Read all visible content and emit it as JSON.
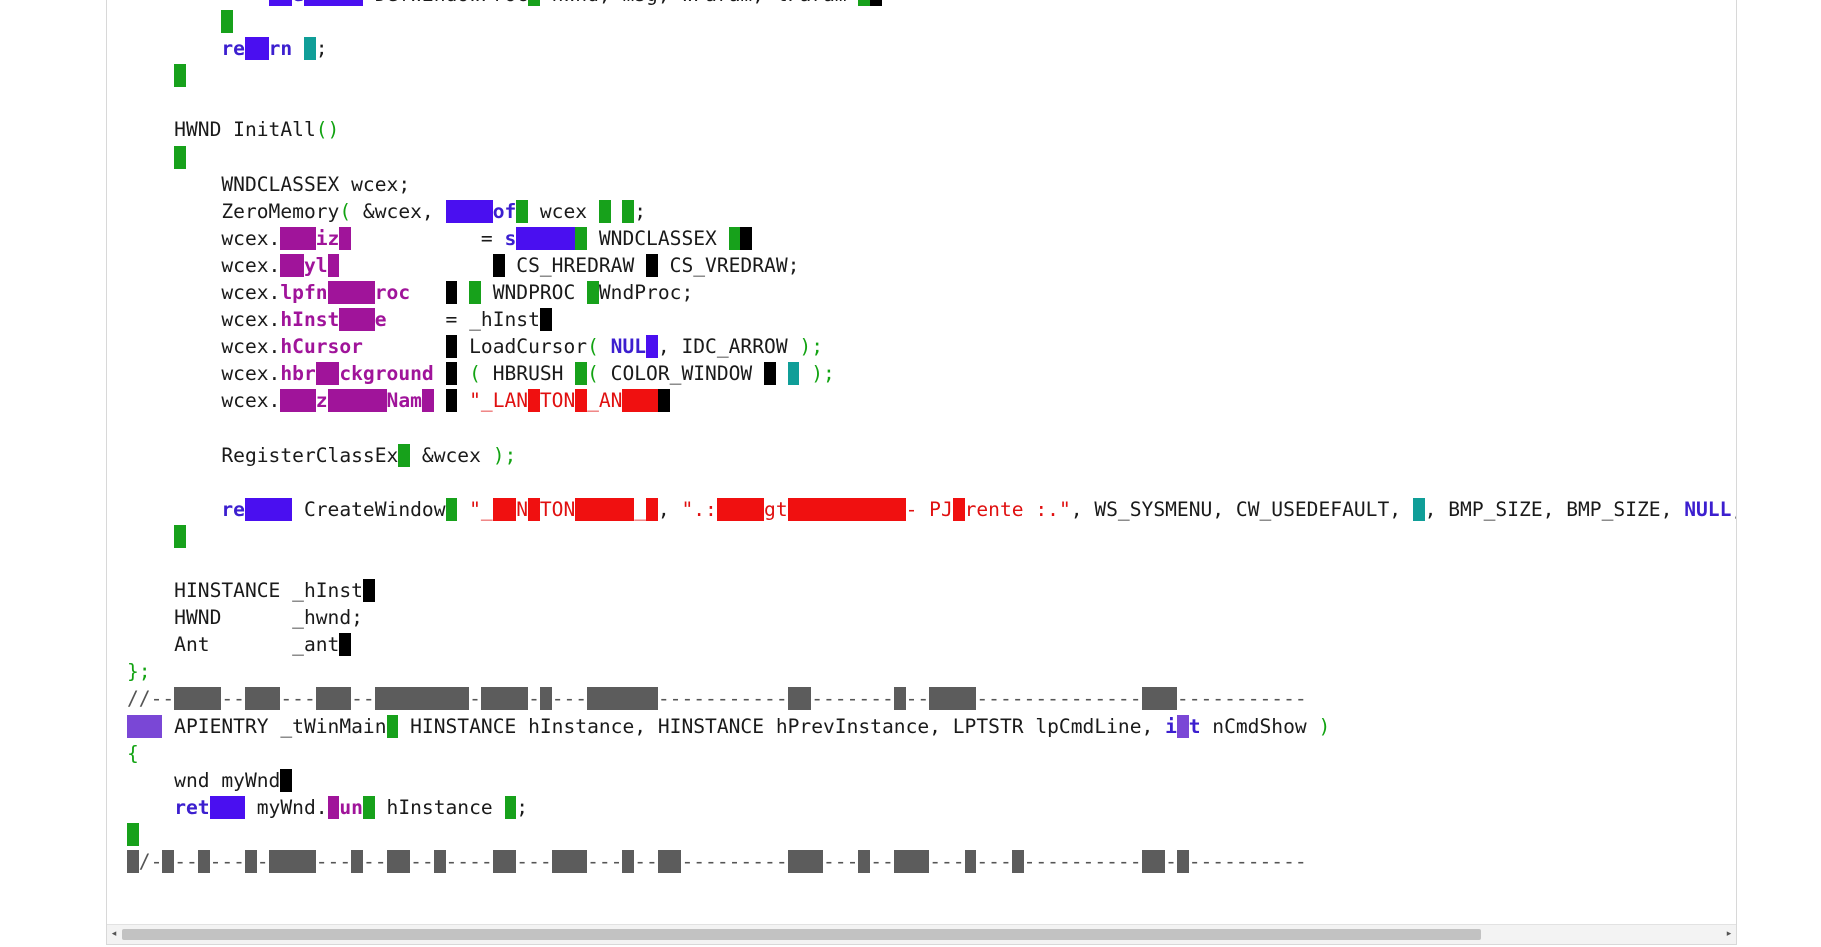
{
  "editor": {
    "lines": [
      [
        {
          "t": "            "
        },
        {
          "t": "  ",
          "c": "bg-blue"
        },
        {
          "t": "e",
          "c": "kw"
        },
        {
          "t": "     ",
          "c": "bg-blue"
        },
        {
          "t": " DefWindowProc"
        },
        {
          "t": " ",
          "c": "bg-green"
        },
        {
          "t": " hWnd, msg, wParam, lParam "
        },
        {
          "t": " ",
          "c": "bg-green"
        },
        {
          "t": " ",
          "c": "bg-black"
        }
      ],
      [
        {
          "t": "        "
        },
        {
          "t": " ",
          "c": "bg-green"
        }
      ],
      [
        {
          "t": "        "
        },
        {
          "t": "re",
          "c": "kw"
        },
        {
          "t": "  ",
          "c": "bg-blue"
        },
        {
          "t": "rn",
          "c": "kw"
        },
        {
          "t": " "
        },
        {
          "t": " ",
          "c": "bg-teal"
        },
        {
          "t": ";"
        }
      ],
      [
        {
          "t": "    "
        },
        {
          "t": " ",
          "c": "bg-green"
        }
      ],
      [
        {
          "t": ""
        }
      ],
      [
        {
          "t": "    HWND InitAll"
        },
        {
          "t": "()",
          "c": "gp"
        }
      ],
      [
        {
          "t": "    "
        },
        {
          "t": " ",
          "c": "bg-green"
        }
      ],
      [
        {
          "t": "        WNDCLASSEX wcex;"
        }
      ],
      [
        {
          "t": "        ZeroMemory"
        },
        {
          "t": "(",
          "c": "gp"
        },
        {
          "t": " &wcex, "
        },
        {
          "t": "    ",
          "c": "bg-blue"
        },
        {
          "t": "of",
          "c": "kw"
        },
        {
          "t": " ",
          "c": "bg-green"
        },
        {
          "t": " wcex "
        },
        {
          "t": " ",
          "c": "bg-green"
        },
        {
          "t": " "
        },
        {
          "t": " ",
          "c": "bg-green"
        },
        {
          "t": ";"
        }
      ],
      [
        {
          "t": "        wcex."
        },
        {
          "t": "   ",
          "c": "bg-purple"
        },
        {
          "t": "iz",
          "c": "mem"
        },
        {
          "t": " ",
          "c": "bg-purple"
        },
        {
          "t": "           = "
        },
        {
          "t": "s",
          "c": "kw"
        },
        {
          "t": "     ",
          "c": "bg-blue"
        },
        {
          "t": " ",
          "c": "bg-green"
        },
        {
          "t": " WNDCLASSEX "
        },
        {
          "t": " ",
          "c": "bg-green"
        },
        {
          "t": " ",
          "c": "bg-black"
        }
      ],
      [
        {
          "t": "        wcex."
        },
        {
          "t": "  ",
          "c": "bg-purple"
        },
        {
          "t": "yl",
          "c": "mem"
        },
        {
          "t": " ",
          "c": "bg-purple"
        },
        {
          "t": "             "
        },
        {
          "t": " ",
          "c": "bg-black"
        },
        {
          "t": " CS_HREDRAW "
        },
        {
          "t": " ",
          "c": "bg-black"
        },
        {
          "t": " CS_VREDRAW;"
        }
      ],
      [
        {
          "t": "        wcex."
        },
        {
          "t": "lpfn",
          "c": "mem"
        },
        {
          "t": "    ",
          "c": "bg-purple"
        },
        {
          "t": "roc",
          "c": "mem"
        },
        {
          "t": "   "
        },
        {
          "t": " ",
          "c": "bg-black"
        },
        {
          "t": " "
        },
        {
          "t": " ",
          "c": "bg-green"
        },
        {
          "t": " WNDPROC "
        },
        {
          "t": " ",
          "c": "bg-green"
        },
        {
          "t": "WndProc;"
        }
      ],
      [
        {
          "t": "        wcex."
        },
        {
          "t": "hInst",
          "c": "mem"
        },
        {
          "t": "   ",
          "c": "bg-purple"
        },
        {
          "t": "e",
          "c": "mem"
        },
        {
          "t": "     = _hInst"
        },
        {
          "t": " ",
          "c": "bg-black"
        }
      ],
      [
        {
          "t": "        wcex."
        },
        {
          "t": "hCursor",
          "c": "mem"
        },
        {
          "t": "       "
        },
        {
          "t": " ",
          "c": "bg-black"
        },
        {
          "t": " LoadCursor"
        },
        {
          "t": "(",
          "c": "gp"
        },
        {
          "t": " "
        },
        {
          "t": "NUL",
          "c": "kw"
        },
        {
          "t": " ",
          "c": "bg-blue"
        },
        {
          "t": ", IDC_ARROW "
        },
        {
          "t": ");",
          "c": "gp"
        }
      ],
      [
        {
          "t": "        wcex."
        },
        {
          "t": "hbr",
          "c": "mem"
        },
        {
          "t": "  ",
          "c": "bg-purple"
        },
        {
          "t": "ckground",
          "c": "mem"
        },
        {
          "t": " "
        },
        {
          "t": " ",
          "c": "bg-black"
        },
        {
          "t": " "
        },
        {
          "t": "(",
          "c": "gp"
        },
        {
          "t": " HBRUSH "
        },
        {
          "t": " ",
          "c": "bg-green"
        },
        {
          "t": "(",
          "c": "gp"
        },
        {
          "t": " COLOR_WINDOW "
        },
        {
          "t": " ",
          "c": "bg-black"
        },
        {
          "t": " "
        },
        {
          "t": " ",
          "c": "bg-teal"
        },
        {
          "t": " "
        },
        {
          "t": ");",
          "c": "gp"
        }
      ],
      [
        {
          "t": "        wcex."
        },
        {
          "t": "   ",
          "c": "bg-purple"
        },
        {
          "t": "z",
          "c": "mem"
        },
        {
          "t": "     ",
          "c": "bg-purple"
        },
        {
          "t": "Nam",
          "c": "mem"
        },
        {
          "t": " ",
          "c": "bg-purple"
        },
        {
          "t": " "
        },
        {
          "t": " ",
          "c": "bg-black"
        },
        {
          "t": " "
        },
        {
          "t": "\"_LAN",
          "c": "str"
        },
        {
          "t": " ",
          "c": "bg-red"
        },
        {
          "t": "TON",
          "c": "str"
        },
        {
          "t": " ",
          "c": "bg-red"
        },
        {
          "t": "_AN",
          "c": "str"
        },
        {
          "t": "   ",
          "c": "bg-red"
        },
        {
          "t": " ",
          "c": "bg-black"
        }
      ],
      [
        {
          "t": ""
        }
      ],
      [
        {
          "t": "        RegisterClassEx"
        },
        {
          "t": " ",
          "c": "bg-green"
        },
        {
          "t": " &wcex "
        },
        {
          "t": ");",
          "c": "gp"
        }
      ],
      [
        {
          "t": ""
        }
      ],
      [
        {
          "t": "        "
        },
        {
          "t": "re",
          "c": "kw"
        },
        {
          "t": "    ",
          "c": "bg-blue"
        },
        {
          "t": " CreateWindow"
        },
        {
          "t": " ",
          "c": "bg-green"
        },
        {
          "t": " "
        },
        {
          "t": "\"_",
          "c": "str"
        },
        {
          "t": "  ",
          "c": "bg-red"
        },
        {
          "t": "N",
          "c": "str"
        },
        {
          "t": " ",
          "c": "bg-red"
        },
        {
          "t": "TON",
          "c": "str"
        },
        {
          "t": "     ",
          "c": "bg-red"
        },
        {
          "t": "_",
          "c": "str"
        },
        {
          "t": " ",
          "c": "bg-red"
        },
        {
          "t": ", "
        },
        {
          "t": "\".:",
          "c": "str"
        },
        {
          "t": "    ",
          "c": "bg-red"
        },
        {
          "t": "gt",
          "c": "str"
        },
        {
          "t": "          ",
          "c": "bg-red"
        },
        {
          "t": "- PJ",
          "c": "str"
        },
        {
          "t": " ",
          "c": "bg-red"
        },
        {
          "t": "rente :.\"",
          "c": "str"
        },
        {
          "t": ", WS_SYSMENU, CW_USEDEFAULT, "
        },
        {
          "t": " ",
          "c": "bg-teal"
        },
        {
          "t": ", BMP_SIZE, BMP_SIZE, "
        },
        {
          "t": "NULL",
          "c": "kw"
        },
        {
          "t": ","
        }
      ],
      [
        {
          "t": "    "
        },
        {
          "t": " ",
          "c": "bg-green"
        }
      ],
      [
        {
          "t": ""
        }
      ],
      [
        {
          "t": "    HINSTANCE _hInst"
        },
        {
          "t": " ",
          "c": "bg-black"
        }
      ],
      [
        {
          "t": "    HWND      _hwnd;"
        }
      ],
      [
        {
          "t": "    Ant       _ant"
        },
        {
          "t": " ",
          "c": "bg-black"
        }
      ],
      [
        {
          "t": "};",
          "c": "gp"
        }
      ],
      [
        {
          "t": "//--",
          "c": "cm"
        },
        {
          "t": "    ",
          "c": "bg-gray"
        },
        {
          "t": "--",
          "c": "cm"
        },
        {
          "t": "   ",
          "c": "bg-gray"
        },
        {
          "t": "---",
          "c": "cm"
        },
        {
          "t": "   ",
          "c": "bg-gray"
        },
        {
          "t": "--",
          "c": "cm"
        },
        {
          "t": "        ",
          "c": "bg-gray"
        },
        {
          "t": "-",
          "c": "cm"
        },
        {
          "t": "    ",
          "c": "bg-gray"
        },
        {
          "t": "-",
          "c": "cm"
        },
        {
          "t": " ",
          "c": "bg-gray"
        },
        {
          "t": "---",
          "c": "cm"
        },
        {
          "t": "      ",
          "c": "bg-gray"
        },
        {
          "t": "-----------",
          "c": "cm"
        },
        {
          "t": "  ",
          "c": "bg-gray"
        },
        {
          "t": "-------",
          "c": "cm"
        },
        {
          "t": " ",
          "c": "bg-gray"
        },
        {
          "t": "--",
          "c": "cm"
        },
        {
          "t": "    ",
          "c": "bg-gray"
        },
        {
          "t": "--------------",
          "c": "cm"
        },
        {
          "t": "   ",
          "c": "bg-gray"
        },
        {
          "t": "-----------",
          "c": "cm"
        }
      ],
      [
        {
          "t": "   ",
          "c": "bg-violet"
        },
        {
          "t": " APIENTRY _tWinMain"
        },
        {
          "t": " ",
          "c": "bg-green"
        },
        {
          "t": " HINSTANCE hInstance, HINSTANCE hPrevInstance, LPTSTR lpCmdLine, "
        },
        {
          "t": "i",
          "c": "kw"
        },
        {
          "t": " ",
          "c": "bg-violet"
        },
        {
          "t": "t",
          "c": "kw"
        },
        {
          "t": " nCmdShow "
        },
        {
          "t": ")",
          "c": "gp"
        }
      ],
      [
        {
          "t": "{",
          "c": "gp"
        }
      ],
      [
        {
          "t": "    wnd myWnd"
        },
        {
          "t": " ",
          "c": "bg-black"
        }
      ],
      [
        {
          "t": "    "
        },
        {
          "t": "ret",
          "c": "kw"
        },
        {
          "t": "   ",
          "c": "bg-blue"
        },
        {
          "t": " myWnd."
        },
        {
          "t": " ",
          "c": "bg-purple"
        },
        {
          "t": "un",
          "c": "mem"
        },
        {
          "t": " ",
          "c": "bg-green"
        },
        {
          "t": " hInstance "
        },
        {
          "t": " ",
          "c": "bg-green"
        },
        {
          "t": ";"
        }
      ],
      [
        {
          "t": " ",
          "c": "bg-green"
        }
      ],
      [
        {
          "t": " ",
          "c": "bg-gray"
        },
        {
          "t": "/-",
          "c": "cm"
        },
        {
          "t": " ",
          "c": "bg-gray"
        },
        {
          "t": "--",
          "c": "cm"
        },
        {
          "t": " ",
          "c": "bg-gray"
        },
        {
          "t": "---",
          "c": "cm"
        },
        {
          "t": " ",
          "c": "bg-gray"
        },
        {
          "t": "-",
          "c": "cm"
        },
        {
          "t": "    ",
          "c": "bg-gray"
        },
        {
          "t": "---",
          "c": "cm"
        },
        {
          "t": " ",
          "c": "bg-gray"
        },
        {
          "t": "--",
          "c": "cm"
        },
        {
          "t": "  ",
          "c": "bg-gray"
        },
        {
          "t": "--",
          "c": "cm"
        },
        {
          "t": " ",
          "c": "bg-gray"
        },
        {
          "t": "----",
          "c": "cm"
        },
        {
          "t": "  ",
          "c": "bg-gray"
        },
        {
          "t": "---",
          "c": "cm"
        },
        {
          "t": "   ",
          "c": "bg-gray"
        },
        {
          "t": "---",
          "c": "cm"
        },
        {
          "t": " ",
          "c": "bg-gray"
        },
        {
          "t": "--",
          "c": "cm"
        },
        {
          "t": "  ",
          "c": "bg-gray"
        },
        {
          "t": "---------",
          "c": "cm"
        },
        {
          "t": "   ",
          "c": "bg-gray"
        },
        {
          "t": "---",
          "c": "cm"
        },
        {
          "t": " ",
          "c": "bg-gray"
        },
        {
          "t": "--",
          "c": "cm"
        },
        {
          "t": "   ",
          "c": "bg-gray"
        },
        {
          "t": "---",
          "c": "cm"
        },
        {
          "t": " ",
          "c": "bg-gray"
        },
        {
          "t": "---",
          "c": "cm"
        },
        {
          "t": " ",
          "c": "bg-gray"
        },
        {
          "t": "----------",
          "c": "cm"
        },
        {
          "t": "  ",
          "c": "bg-gray"
        },
        {
          "t": "-",
          "c": "cm"
        },
        {
          "t": " ",
          "c": "bg-gray"
        },
        {
          "t": "----------",
          "c": "cm"
        }
      ]
    ]
  },
  "scrollbar": {
    "left_arrow": "◂",
    "right_arrow": "▸",
    "thumb_fraction": 0.85
  }
}
